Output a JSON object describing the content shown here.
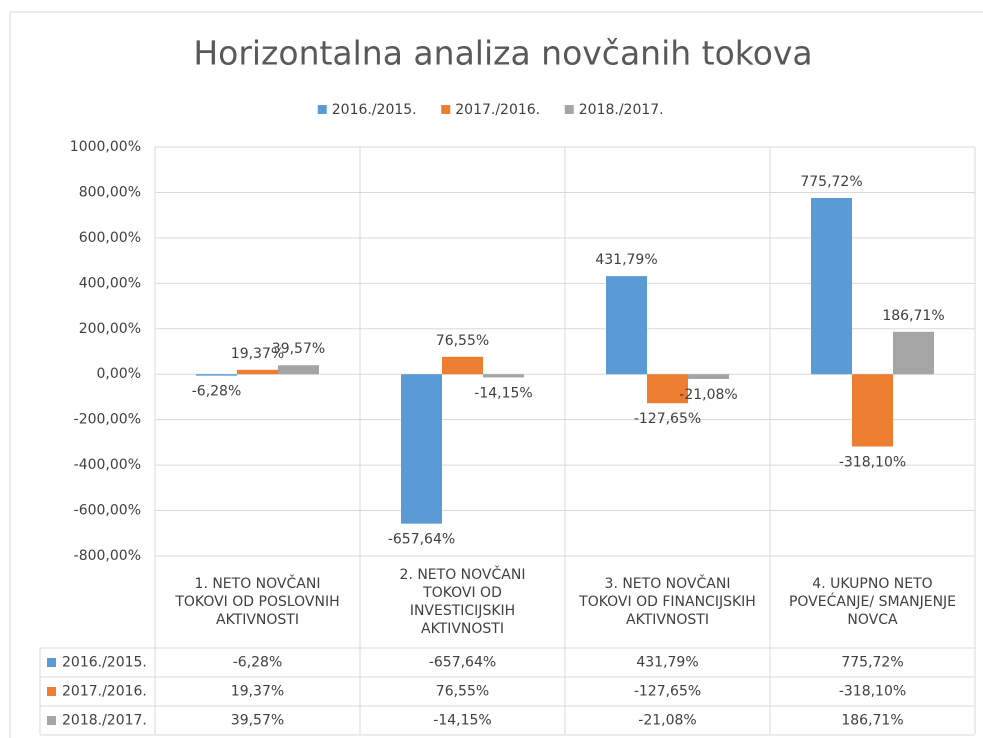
{
  "chart_data": {
    "type": "bar",
    "title": "Horizontalna analiza novčanih tokova",
    "categories": [
      "1. NETO NOVČANI TOKOVI OD POSLOVNIH AKTIVNOSTI",
      "2. NETO NOVČANI TOKOVI OD INVESTICIJSKIH AKTIVNOSTI",
      "3. NETO NOVČANI TOKOVI OD FINANCIJSKIH AKTIVNOSTI",
      "4. UKUPNO NETO POVEĆANJE/ SMANJENJE NOVCA"
    ],
    "series": [
      {
        "name": "2016./2015.",
        "color": "#5b9bd5",
        "values": [
          -6.28,
          -657.64,
          431.79,
          775.72
        ],
        "value_labels": [
          "-6,28%",
          "-657,64%",
          "431,79%",
          "775,72%"
        ]
      },
      {
        "name": "2017./2016.",
        "color": "#ed7d31",
        "values": [
          19.37,
          76.55,
          -127.65,
          -318.1
        ],
        "value_labels": [
          "19,37%",
          "76,55%",
          "-127,65%",
          "-318,10%"
        ]
      },
      {
        "name": "2018./2017.",
        "color": "#a5a5a5",
        "values": [
          39.57,
          -14.15,
          -21.08,
          186.71
        ],
        "value_labels": [
          "39,57%",
          "-14,15%",
          "-21,08%",
          "186,71%"
        ]
      }
    ],
    "ylim": [
      -800,
      1000
    ],
    "yticks": [
      {
        "value": -800,
        "label": "-800,00%"
      },
      {
        "value": -600,
        "label": "-600,00%"
      },
      {
        "value": -400,
        "label": "-400,00%"
      },
      {
        "value": -200,
        "label": "-200,00%"
      },
      {
        "value": 0,
        "label": "0,00%"
      },
      {
        "value": 200,
        "label": "200,00%"
      },
      {
        "value": 400,
        "label": "400,00%"
      },
      {
        "value": 600,
        "label": "600,00%"
      },
      {
        "value": 800,
        "label": "800,00%"
      },
      {
        "value": 1000,
        "label": "1000,00%"
      }
    ],
    "grid": true,
    "legend": "top",
    "data_table": true
  }
}
